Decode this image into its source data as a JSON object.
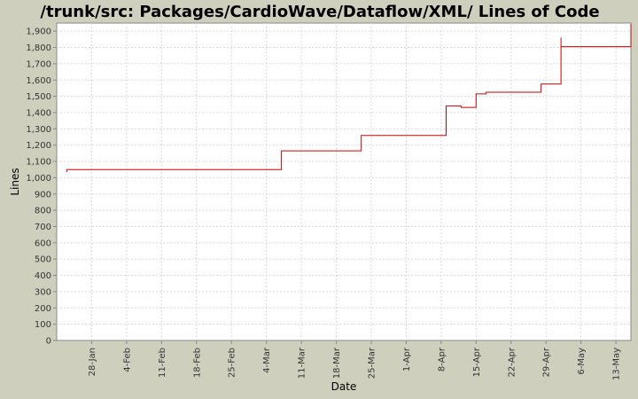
{
  "chart_data": {
    "type": "line",
    "title": "/trunk/src: Packages/CardioWave/Dataflow/XML/ Lines of Code",
    "xlabel": "Date",
    "ylabel": "Lines",
    "ylim": [
      0,
      1950
    ],
    "y_ticks": [
      0,
      100,
      200,
      300,
      400,
      500,
      600,
      700,
      800,
      900,
      1000,
      1100,
      1200,
      1300,
      1400,
      1500,
      1600,
      1700,
      1800,
      1900
    ],
    "y_tick_labels": [
      "0",
      "100",
      "200",
      "300",
      "400",
      "500",
      "600",
      "700",
      "800",
      "900",
      "1,000",
      "1,100",
      "1,200",
      "1,300",
      "1,400",
      "1,500",
      "1,600",
      "1,700",
      "1,800",
      "1,900"
    ],
    "x_ticks": [
      "2005-01-28",
      "2005-02-04",
      "2005-02-11",
      "2005-02-18",
      "2005-02-25",
      "2005-03-04",
      "2005-03-11",
      "2005-03-18",
      "2005-03-25",
      "2005-04-01",
      "2005-04-08",
      "2005-04-15",
      "2005-04-22",
      "2005-04-29",
      "2005-05-06",
      "2005-05-13"
    ],
    "x_tick_labels": [
      "28-Jan",
      "4-Feb",
      "11-Feb",
      "18-Feb",
      "25-Feb",
      "4-Mar",
      "11-Mar",
      "18-Mar",
      "25-Mar",
      "1-Apr",
      "8-Apr",
      "15-Apr",
      "22-Apr",
      "29-Apr",
      "6-May",
      "13-May"
    ],
    "xlim": [
      "2005-01-21",
      "2005-05-16"
    ],
    "step": true,
    "grid": true,
    "line_color": "#cc0000",
    "series": [
      {
        "points": [
          {
            "x": "2005-01-23",
            "y": 1035
          },
          {
            "x": "2005-01-23",
            "y": 1050
          },
          {
            "x": "2005-03-07",
            "y": 1050
          },
          {
            "x": "2005-03-07",
            "y": 1165
          },
          {
            "x": "2005-03-23",
            "y": 1165
          },
          {
            "x": "2005-03-23",
            "y": 1260
          },
          {
            "x": "2005-04-09",
            "y": 1260
          },
          {
            "x": "2005-04-09",
            "y": 1440
          },
          {
            "x": "2005-04-12",
            "y": 1440
          },
          {
            "x": "2005-04-12",
            "y": 1432
          },
          {
            "x": "2005-04-15",
            "y": 1432
          },
          {
            "x": "2005-04-15",
            "y": 1515
          },
          {
            "x": "2005-04-17",
            "y": 1515
          },
          {
            "x": "2005-04-17",
            "y": 1525
          },
          {
            "x": "2005-04-28",
            "y": 1525
          },
          {
            "x": "2005-04-28",
            "y": 1575
          },
          {
            "x": "2005-05-02",
            "y": 1575
          },
          {
            "x": "2005-05-02",
            "y": 1860
          },
          {
            "x": "2005-05-02",
            "y": 1805
          },
          {
            "x": "2005-05-16",
            "y": 1805
          },
          {
            "x": "2005-05-16",
            "y": 1945
          }
        ]
      }
    ]
  }
}
